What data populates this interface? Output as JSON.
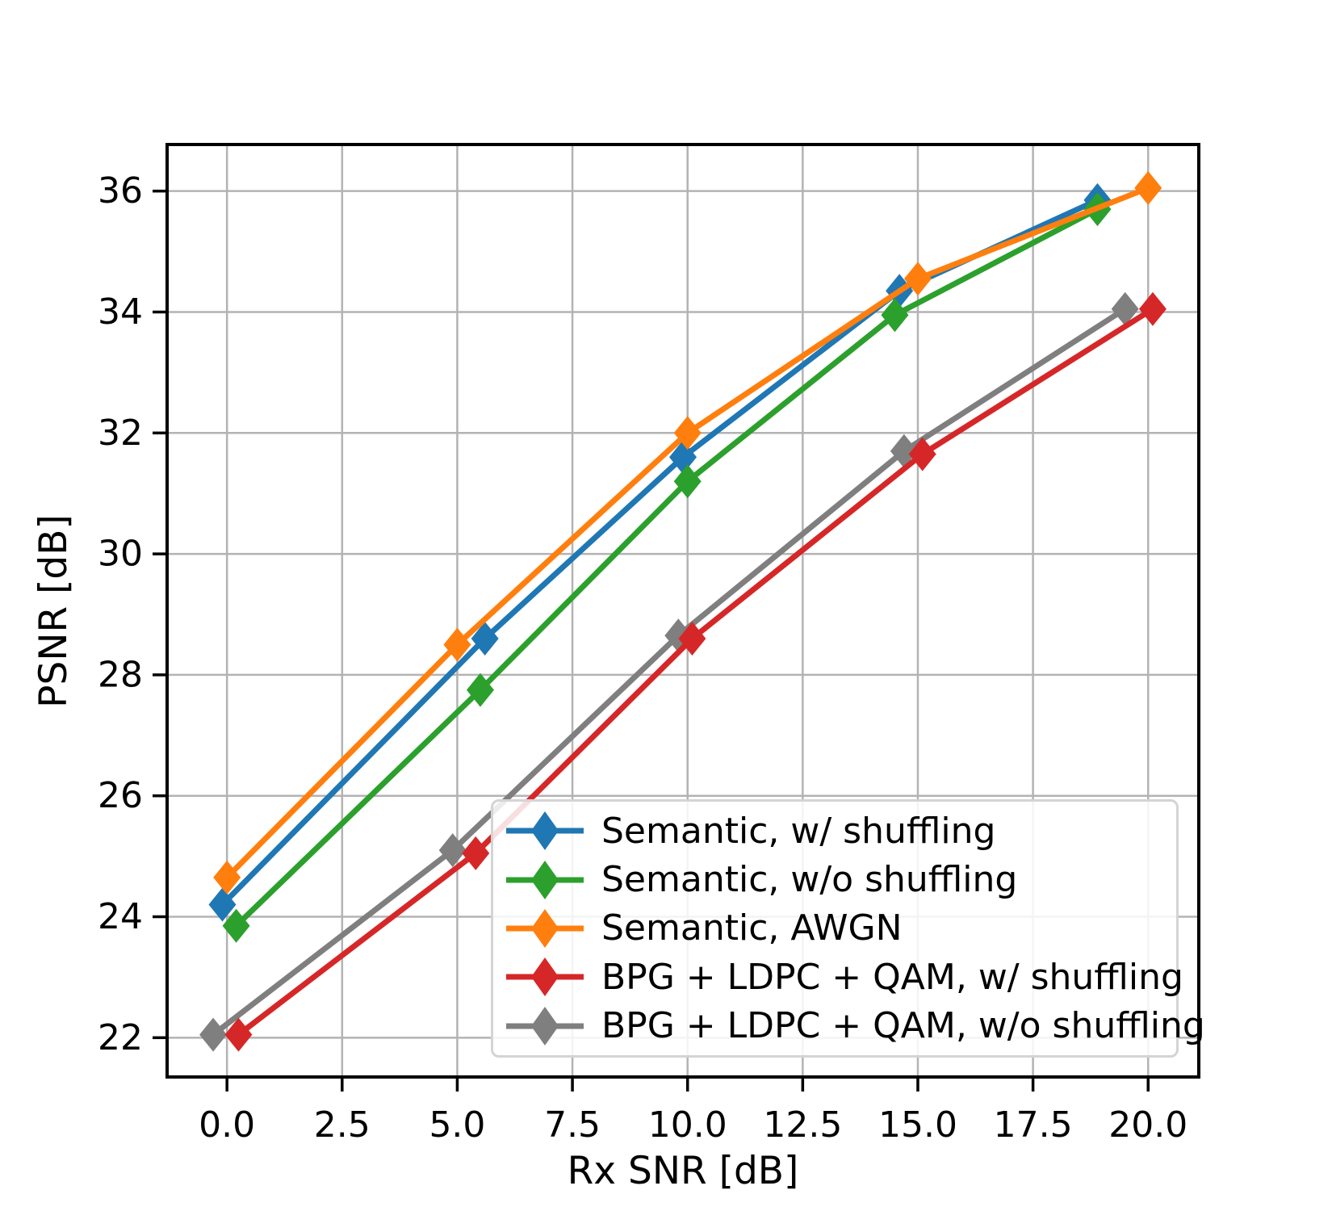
{
  "figure": {
    "background": "#ffffff"
  },
  "chart_data": {
    "type": "line",
    "title": "",
    "xlabel": "Rx SNR [dB]",
    "ylabel": "PSNR [dB]",
    "xlim": [
      -1.3,
      21.1
    ],
    "ylim": [
      21.35,
      36.77
    ],
    "grid": true,
    "grid_color": "#b3b3b3",
    "spine_color": "#000000",
    "legend_position": "lower right inside",
    "xticks": {
      "values": [
        0,
        2.5,
        5,
        7.5,
        10,
        12.5,
        15,
        17.5,
        20
      ],
      "labels": [
        "0.0",
        "2.5",
        "5.0",
        "7.5",
        "10.0",
        "12.5",
        "15.0",
        "17.5",
        "20.0"
      ]
    },
    "yticks": {
      "values": [
        22,
        24,
        26,
        28,
        30,
        32,
        34,
        36
      ],
      "labels": [
        "22",
        "24",
        "26",
        "28",
        "30",
        "32",
        "34",
        "36"
      ]
    },
    "marker": "thin-diamond",
    "draw_order": [
      0,
      1,
      2,
      4,
      3
    ],
    "series": [
      {
        "name": "Semantic, w/ shuffling",
        "color": "#1f77b4",
        "x": [
          -0.1,
          5.6,
          9.9,
          14.6,
          18.9
        ],
        "y": [
          24.2,
          28.6,
          31.6,
          34.35,
          35.85
        ]
      },
      {
        "name": "Semantic, w/o shuffling",
        "color": "#2ca02c",
        "x": [
          0.2,
          5.5,
          10.0,
          14.5,
          18.9
        ],
        "y": [
          23.85,
          27.75,
          31.2,
          33.95,
          35.7
        ]
      },
      {
        "name": "Semantic, AWGN",
        "color": "#ff7f0e",
        "x": [
          0.0,
          5.0,
          10.0,
          15.0,
          20.0
        ],
        "y": [
          24.65,
          28.5,
          32.0,
          34.55,
          36.05
        ]
      },
      {
        "name": "BPG + LDPC + QAM, w/ shuffling",
        "color": "#d62728",
        "x": [
          0.25,
          5.4,
          10.1,
          15.1,
          20.1
        ],
        "y": [
          22.05,
          25.05,
          28.6,
          31.65,
          34.05
        ]
      },
      {
        "name": "BPG + LDPC + QAM, w/o shuffling",
        "color": "#7f7f7f",
        "x": [
          -0.3,
          4.9,
          9.8,
          14.7,
          19.5
        ],
        "y": [
          22.05,
          25.1,
          28.65,
          31.7,
          34.05
        ]
      }
    ]
  }
}
